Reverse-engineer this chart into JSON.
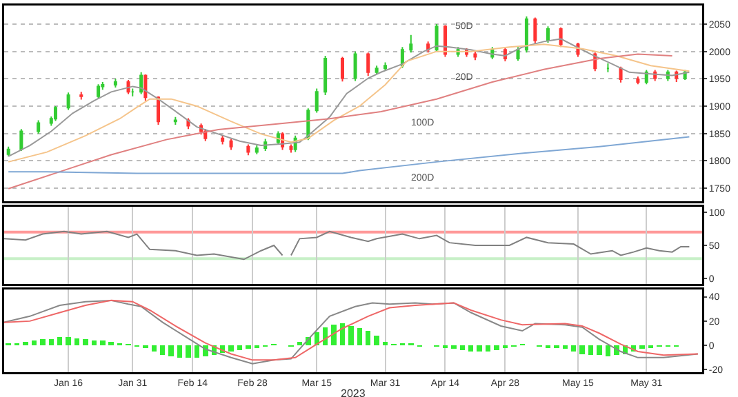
{
  "chart_data": [
    {
      "type": "candlestick",
      "tick_labels": "y",
      "grid": "y",
      "xlim": [
        "2023-01-01",
        "2023-06-13"
      ],
      "ylim": [
        1726,
        2084
      ],
      "yticks": [
        1750,
        1800,
        1850,
        1900,
        1950,
        2000,
        2050
      ],
      "colors": [
        "#33cc33",
        "#33cc33",
        "#33cc33",
        "#33cc33",
        "#33cc33",
        "#33cc33",
        "#ff3333",
        "#33cc33",
        "#33cc33",
        "#33cc33",
        "#ff3333",
        "#33cc33",
        "#33cc33",
        "#ff3333",
        "#ff3333",
        "#33cc33",
        "#ff3333",
        "#ff3333",
        "#ff3333",
        "#ff3333",
        "#ff3333",
        "#ff3333",
        "#33cc33",
        "#33cc33",
        "#33cc33",
        "#ff3333",
        "#ff3333",
        "#33cc33",
        "#33cc33",
        "#33cc33",
        "#33cc33",
        "#ff3333",
        "#33cc33",
        "#ff3333",
        "#33cc33",
        "#33cc33",
        "#33cc33",
        "#33cc33",
        "#ff3333",
        "#33cc33",
        "#ff3333",
        "#33cc33",
        "#ff3333",
        "#ff3333",
        "#33cc33",
        "#ff3333",
        "#33cc33",
        "#33cc33",
        "#ff3333",
        "#33cc33",
        "#ff3333",
        "#ff3333",
        "#ff3333",
        "#33cc33",
        "#ff3333",
        "#ff3333",
        "#33cc33",
        "#ff3333",
        "#33cc33",
        "#ff3333",
        "#33cc33"
      ],
      "x": [
        "2023-01-02",
        "2023-01-05",
        "2023-01-09",
        "2023-01-12",
        "2023-01-13",
        "2023-01-16",
        "2023-01-19",
        "2023-01-23",
        "2023-01-24",
        "2023-01-27",
        "2023-01-30",
        "2023-01-31",
        "2023-02-02",
        "2023-02-03",
        "2023-02-06",
        "2023-02-10",
        "2023-02-13",
        "2023-02-16",
        "2023-02-17",
        "2023-02-21",
        "2023-02-23",
        "2023-02-27",
        "2023-03-01",
        "2023-03-03",
        "2023-03-06",
        "2023-03-07",
        "2023-03-09",
        "2023-03-10",
        "2023-03-13",
        "2023-03-15",
        "2023-03-17",
        "2023-03-21",
        "2023-03-24",
        "2023-03-27",
        "2023-03-29",
        "2023-03-31",
        "2023-04-04",
        "2023-04-06",
        "2023-04-10",
        "2023-04-12",
        "2023-04-14",
        "2023-04-17",
        "2023-04-19",
        "2023-04-21",
        "2023-04-25",
        "2023-04-28",
        "2023-05-01",
        "2023-05-03",
        "2023-05-05",
        "2023-05-08",
        "2023-05-11",
        "2023-05-15",
        "2023-05-19",
        "2023-05-22",
        "2023-05-25",
        "2023-05-29",
        "2023-05-31",
        "2023-06-02",
        "2023-06-05",
        "2023-06-07",
        "2023-06-09"
      ],
      "ohlc": [
        [
          1812,
          1826,
          1808,
          1821
        ],
        [
          1821,
          1858,
          1818,
          1854
        ],
        [
          1854,
          1874,
          1850,
          1869
        ],
        [
          1869,
          1881,
          1864,
          1877
        ],
        [
          1877,
          1900,
          1873,
          1897
        ],
        [
          1897,
          1925,
          1893,
          1920
        ],
        [
          1920,
          1926,
          1912,
          1918
        ],
        [
          1918,
          1940,
          1914,
          1936
        ],
        [
          1936,
          1944,
          1930,
          1939
        ],
        [
          1939,
          1950,
          1934,
          1944
        ],
        [
          1944,
          1948,
          1922,
          1926
        ],
        [
          1926,
          1932,
          1918,
          1926
        ],
        [
          1926,
          1962,
          1922,
          1956
        ],
        [
          1956,
          1958,
          1910,
          1916
        ],
        [
          1916,
          1918,
          1866,
          1872
        ],
        [
          1872,
          1880,
          1866,
          1874
        ],
        [
          1874,
          1878,
          1858,
          1864
        ],
        [
          1864,
          1868,
          1848,
          1854
        ],
        [
          1854,
          1858,
          1836,
          1841
        ],
        [
          1841,
          1846,
          1830,
          1836
        ],
        [
          1836,
          1840,
          1820,
          1826
        ],
        [
          1826,
          1830,
          1810,
          1816
        ],
        [
          1816,
          1828,
          1812,
          1823
        ],
        [
          1823,
          1840,
          1818,
          1834
        ],
        [
          1834,
          1854,
          1830,
          1849
        ],
        [
          1849,
          1852,
          1820,
          1826
        ],
        [
          1826,
          1830,
          1815,
          1821
        ],
        [
          1821,
          1846,
          1816,
          1841
        ],
        [
          1841,
          1896,
          1838,
          1892
        ],
        [
          1892,
          1932,
          1888,
          1926
        ],
        [
          1926,
          1992,
          1920,
          1987
        ],
        [
          1987,
          1990,
          1945,
          1951
        ],
        [
          1951,
          2000,
          1946,
          1995
        ],
        [
          1995,
          1998,
          1955,
          1962
        ],
        [
          1962,
          1974,
          1958,
          1969
        ],
        [
          1969,
          1980,
          1965,
          1974
        ],
        [
          1974,
          2008,
          1970,
          2003
        ],
        [
          2003,
          2030,
          1998,
          2013
        ],
        [
          2013,
          2018,
          1998,
          2003
        ],
        [
          2003,
          2050,
          2000,
          2046
        ],
        [
          2046,
          2048,
          1990,
          1995
        ],
        [
          1995,
          2008,
          1990,
          2003
        ],
        [
          2003,
          2006,
          1990,
          1995
        ],
        [
          1995,
          2000,
          1984,
          1990
        ],
        [
          1990,
          2008,
          1986,
          2003
        ],
        [
          2003,
          2006,
          1982,
          1987
        ],
        [
          1987,
          2008,
          1983,
          2003
        ],
        [
          2003,
          2064,
          1998,
          2059
        ],
        [
          2059,
          2062,
          2014,
          2020
        ],
        [
          2020,
          2046,
          2016,
          2041
        ],
        [
          2041,
          2044,
          2008,
          2013
        ],
        [
          2013,
          2016,
          1990,
          1995
        ],
        [
          1995,
          1998,
          1964,
          1969
        ],
        [
          1969,
          1978,
          1962,
          1969
        ],
        [
          1969,
          1972,
          1943,
          1949
        ],
        [
          1949,
          1954,
          1940,
          1944
        ],
        [
          1944,
          1966,
          1940,
          1962
        ],
        [
          1962,
          1966,
          1946,
          1951
        ],
        [
          1951,
          1966,
          1946,
          1962
        ],
        [
          1962,
          1965,
          1944,
          1951
        ],
        [
          1951,
          1966,
          1948,
          1962
        ]
      ],
      "series": [
        {
          "type": "line",
          "color": "#999999",
          "x": [
            "2023-01-02",
            "2023-01-07",
            "2023-01-12",
            "2023-01-17",
            "2023-01-22",
            "2023-01-26",
            "2023-01-31",
            "2023-02-02",
            "2023-02-06",
            "2023-02-11",
            "2023-02-15",
            "2023-02-20",
            "2023-02-25",
            "2023-03-02",
            "2023-03-07",
            "2023-03-11",
            "2023-03-13",
            "2023-03-18",
            "2023-03-22",
            "2023-03-27",
            "2023-03-30",
            "2023-04-04",
            "2023-04-09",
            "2023-04-12",
            "2023-04-15",
            "2023-04-20",
            "2023-04-25",
            "2023-04-28",
            "2023-05-02",
            "2023-05-07",
            "2023-05-11",
            "2023-05-13",
            "2023-05-18",
            "2023-05-23",
            "2023-05-27",
            "2023-06-01",
            "2023-06-06",
            "2023-06-10"
          ],
          "values": [
            1808,
            1828,
            1854,
            1887,
            1910,
            1926,
            1936,
            1933,
            1913,
            1885,
            1862,
            1849,
            1836,
            1828,
            1831,
            1834,
            1846,
            1880,
            1923,
            1951,
            1962,
            1977,
            2000,
            2010,
            2008,
            2003,
            1995,
            1992,
            2008,
            2018,
            2023,
            2015,
            1995,
            1977,
            1962,
            1959,
            1956,
            1962
          ]
        },
        {
          "type": "line",
          "color": "#f5c48a",
          "x": [
            "2023-01-02",
            "2023-01-11",
            "2023-01-20",
            "2023-01-28",
            "2023-02-01",
            "2023-02-04",
            "2023-02-09",
            "2023-02-15",
            "2023-02-23",
            "2023-03-02",
            "2023-03-09",
            "2023-03-13",
            "2023-03-19",
            "2023-03-25",
            "2023-03-31",
            "2023-04-05",
            "2023-04-12",
            "2023-04-20",
            "2023-04-29",
            "2023-05-07",
            "2023-05-16",
            "2023-05-24",
            "2023-06-01",
            "2023-06-10"
          ],
          "values": [
            1798,
            1816,
            1846,
            1877,
            1898,
            1913,
            1913,
            1900,
            1872,
            1849,
            1834,
            1841,
            1874,
            1900,
            1939,
            1982,
            2000,
            2000,
            2008,
            2013,
            2005,
            1992,
            1974,
            1964
          ]
        },
        {
          "type": "line",
          "color": "#e08080",
          "x": [
            "2023-01-02",
            "2023-01-14",
            "2023-01-26",
            "2023-02-08",
            "2023-02-20",
            "2023-03-05",
            "2023-03-18",
            "2023-03-30",
            "2023-04-12",
            "2023-04-25",
            "2023-05-07",
            "2023-05-20",
            "2023-05-29",
            "2023-06-06"
          ],
          "values": [
            1749,
            1780,
            1811,
            1839,
            1857,
            1867,
            1877,
            1890,
            1913,
            1944,
            1967,
            1987,
            1995,
            1992
          ]
        },
        {
          "type": "line",
          "color": "#7fa7d4",
          "x": [
            "2023-01-02",
            "2023-01-11",
            "2023-02-01",
            "2023-03-05",
            "2023-03-21",
            "2023-03-25",
            "2023-04-12",
            "2023-05-01",
            "2023-05-20",
            "2023-06-10"
          ],
          "values": [
            1780,
            1780,
            1777,
            1777,
            1777,
            1782,
            1798,
            1813,
            1826,
            1844
          ]
        }
      ],
      "annotations": [
        "50D",
        "20D",
        "100D",
        "200D"
      ]
    },
    {
      "type": "line",
      "tick_labels": "y",
      "grid": "x",
      "xlim": [
        "2023-01-01",
        "2023-06-13"
      ],
      "xticks": [
        {
          "value": "2023-01-16",
          "label": null
        },
        {
          "value": "2023-01-31",
          "label": null
        },
        {
          "value": "2023-02-14",
          "label": null
        },
        {
          "value": "2023-02-28",
          "label": null
        },
        {
          "value": "2023-03-15",
          "label": null
        },
        {
          "value": "2023-03-31",
          "label": null
        },
        {
          "value": "2023-04-14",
          "label": null
        },
        {
          "value": "2023-04-28",
          "label": null
        },
        {
          "value": "2023-05-15",
          "label": null
        },
        {
          "value": "2023-05-31",
          "label": null
        }
      ],
      "ylim": [
        -8,
        108
      ],
      "yticks": [
        0,
        50,
        100
      ],
      "ref_lines": [
        {
          "axis": "y",
          "value": 70,
          "color": "#ff9999"
        },
        {
          "axis": "y",
          "value": 30,
          "color": "#c8f0c8"
        }
      ],
      "series": [
        {
          "color": "#808080",
          "x": [
            "2023-01-01",
            "2023-01-06",
            "2023-01-10",
            "2023-01-15",
            "2023-01-19",
            "2023-01-25",
            "2023-01-30",
            "2023-02-01",
            "2023-02-04",
            "2023-02-10",
            "2023-02-15",
            "2023-02-19",
            "2023-02-26",
            "2023-03-02",
            "2023-03-05",
            "2023-03-07",
            "2023-03-08",
            "2023-03-09",
            "2023-03-11",
            "2023-03-15",
            "2023-03-18",
            "2023-03-23",
            "2023-03-27",
            "2023-03-29",
            "2023-04-04",
            "2023-04-08",
            "2023-04-12",
            "2023-04-15",
            "2023-04-21",
            "2023-04-29",
            "2023-05-03",
            "2023-05-08",
            "2023-05-14",
            "2023-05-18",
            "2023-05-23",
            "2023-05-25",
            "2023-05-28",
            "2023-05-31",
            "2023-06-03",
            "2023-06-06",
            "2023-06-08",
            "2023-06-10"
          ],
          "values": [
            60,
            58,
            67,
            71,
            67,
            71,
            62,
            67,
            44,
            42,
            35,
            37,
            29,
            42,
            50,
            35,
            null,
            35,
            60,
            62,
            71,
            62,
            56,
            60,
            67,
            60,
            65,
            54,
            50,
            50,
            62,
            54,
            52,
            37,
            42,
            35,
            40,
            46,
            42,
            40,
            48,
            48
          ]
        }
      ]
    },
    {
      "type": "bar",
      "grid": "x",
      "xlim": [
        "2023-01-01",
        "2023-06-13"
      ],
      "xticks": [
        {
          "value": "2023-01-16",
          "label": "Jan 16"
        },
        {
          "value": "2023-01-31",
          "label": "Jan 31"
        },
        {
          "value": "2023-02-14",
          "label": "Feb 14"
        },
        {
          "value": "2023-02-28",
          "label": "Feb 28"
        },
        {
          "value": "2023-03-15",
          "label": "Mar 15"
        },
        {
          "value": "2023-03-31",
          "label": "Mar 31"
        },
        {
          "value": "2023-04-14",
          "label": "Apr 14"
        },
        {
          "value": "2023-04-28",
          "label": "Apr 28"
        },
        {
          "value": "2023-05-15",
          "label": "May 15"
        },
        {
          "value": "2023-05-31",
          "label": "May 31"
        }
      ],
      "ylim": [
        -22,
        46
      ],
      "yticks": [
        -20,
        0,
        20,
        40
      ],
      "annotations": [
        "2023"
      ],
      "series": [
        {
          "type": "bar",
          "color": "#33ee33",
          "x": [
            "2023-01-02",
            "2023-01-04",
            "2023-01-06",
            "2023-01-08",
            "2023-01-10",
            "2023-01-12",
            "2023-01-14",
            "2023-01-16",
            "2023-01-18",
            "2023-01-20",
            "2023-01-22",
            "2023-01-24",
            "2023-01-26",
            "2023-01-28",
            "2023-01-30",
            "2023-02-01",
            "2023-02-03",
            "2023-02-05",
            "2023-02-07",
            "2023-02-09",
            "2023-02-11",
            "2023-02-13",
            "2023-02-15",
            "2023-02-17",
            "2023-02-19",
            "2023-02-21",
            "2023-02-23",
            "2023-02-25",
            "2023-02-27",
            "2023-03-01",
            "2023-03-03",
            "2023-03-05",
            "2023-03-07",
            "2023-03-09",
            "2023-03-11",
            "2023-03-13",
            "2023-03-15",
            "2023-03-17",
            "2023-03-19",
            "2023-03-21",
            "2023-03-23",
            "2023-03-25",
            "2023-03-27",
            "2023-03-29",
            "2023-03-31",
            "2023-04-02",
            "2023-04-04",
            "2023-04-06",
            "2023-04-08",
            "2023-04-10",
            "2023-04-12",
            "2023-04-14",
            "2023-04-16",
            "2023-04-18",
            "2023-04-20",
            "2023-04-22",
            "2023-04-24",
            "2023-04-26",
            "2023-04-28",
            "2023-04-30",
            "2023-05-02",
            "2023-05-04",
            "2023-05-06",
            "2023-05-08",
            "2023-05-10",
            "2023-05-12",
            "2023-05-14",
            "2023-05-16",
            "2023-05-18",
            "2023-05-20",
            "2023-05-22",
            "2023-05-24",
            "2023-05-26",
            "2023-05-28",
            "2023-05-30",
            "2023-06-01",
            "2023-06-03",
            "2023-06-05",
            "2023-06-07",
            "2023-06-09",
            "2023-06-11"
          ],
          "values": [
            2,
            2,
            3,
            4,
            5,
            5,
            7,
            7,
            6,
            5,
            4,
            4,
            3,
            2,
            1,
            -1,
            -2,
            -5,
            -8,
            -9,
            -10,
            -10,
            -10,
            -9,
            -8,
            -6,
            -5,
            -4,
            -3,
            -2,
            -1,
            1,
            0,
            -1,
            3,
            7,
            11,
            15,
            17,
            18,
            16,
            14,
            12,
            8,
            3,
            1,
            2,
            2,
            -1,
            0,
            -1,
            -2,
            -3,
            -4,
            -5,
            -5,
            -5,
            -4,
            -2,
            -1,
            1,
            0,
            -1,
            -2,
            -2,
            -3,
            -5,
            -7,
            -8,
            -8,
            -9,
            -8,
            -7,
            -5,
            -3,
            -2,
            -1,
            -1,
            -1,
            0,
            0
          ]
        },
        {
          "type": "line",
          "color": "#888888",
          "x": [
            "2023-01-01",
            "2023-01-07",
            "2023-01-14",
            "2023-01-20",
            "2023-01-26",
            "2023-01-30",
            "2023-02-02",
            "2023-02-07",
            "2023-02-12",
            "2023-02-17",
            "2023-02-23",
            "2023-02-28",
            "2023-03-05",
            "2023-03-09",
            "2023-03-13",
            "2023-03-18",
            "2023-03-24",
            "2023-03-28",
            "2023-04-01",
            "2023-04-07",
            "2023-04-11",
            "2023-04-16",
            "2023-04-20",
            "2023-04-27",
            "2023-05-02",
            "2023-05-05",
            "2023-05-12",
            "2023-05-16",
            "2023-05-20",
            "2023-05-25",
            "2023-05-29",
            "2023-06-04",
            "2023-06-12"
          ],
          "values": [
            19,
            24,
            33,
            36,
            37,
            34,
            32,
            19,
            8,
            -3,
            -10,
            -15,
            -12,
            -11,
            5,
            24,
            32,
            35,
            34,
            35,
            34,
            35,
            27,
            16,
            12,
            18,
            17,
            15,
            5,
            -5,
            -10,
            -10,
            -7
          ]
        },
        {
          "type": "line",
          "color": "#ee6666",
          "x": [
            "2023-01-01",
            "2023-01-07",
            "2023-01-14",
            "2023-01-20",
            "2023-01-26",
            "2023-01-31",
            "2023-02-04",
            "2023-02-10",
            "2023-02-17",
            "2023-02-23",
            "2023-02-28",
            "2023-03-05",
            "2023-03-10",
            "2023-03-15",
            "2023-03-21",
            "2023-03-27",
            "2023-04-01",
            "2023-04-07",
            "2023-04-16",
            "2023-04-20",
            "2023-04-27",
            "2023-05-02",
            "2023-05-12",
            "2023-05-16",
            "2023-05-20",
            "2023-05-25",
            "2023-05-29",
            "2023-06-04",
            "2023-06-12"
          ],
          "values": [
            19,
            20,
            27,
            33,
            37,
            36,
            29,
            16,
            2,
            -7,
            -12,
            -12,
            -10,
            1,
            14,
            24,
            31,
            33,
            35,
            29,
            21,
            17,
            18,
            16,
            10,
            1,
            -5,
            -8,
            -7
          ]
        }
      ]
    }
  ]
}
